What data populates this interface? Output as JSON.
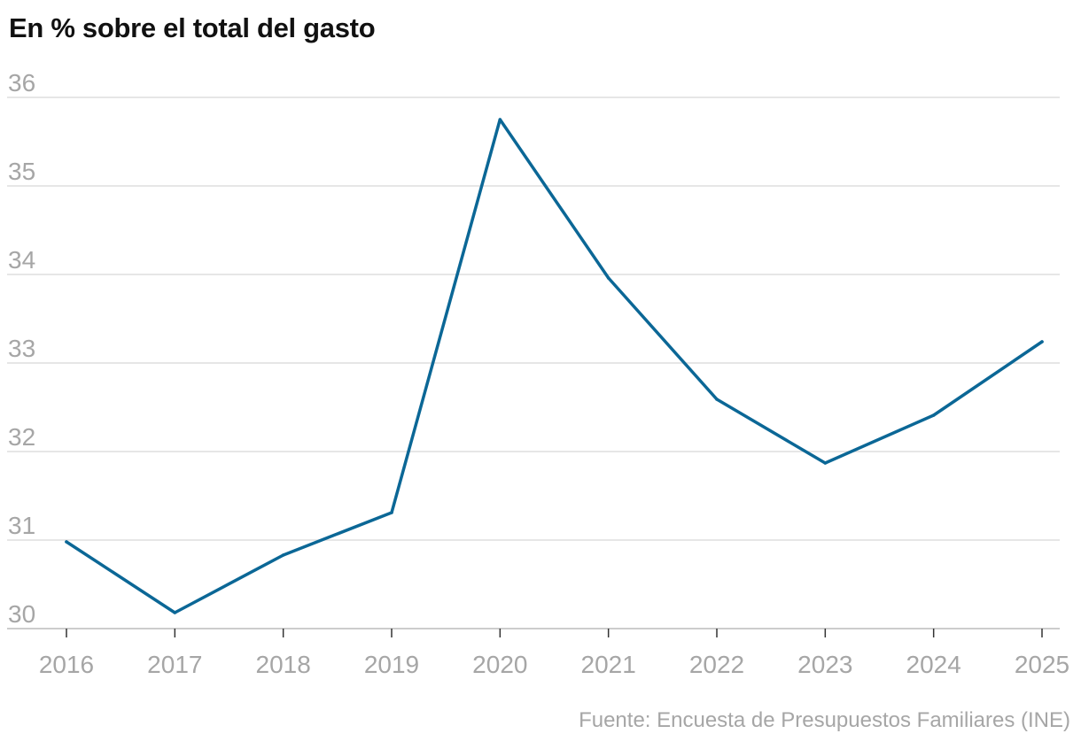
{
  "title": "En % sobre el total del gasto",
  "source": "Fuente: Encuesta de Presupuestos Familiares (INE)",
  "colors": {
    "line": "#0b6796",
    "grid": "#dddddd",
    "axis": "#bbbbbb",
    "tick_text": "#a6a6a6",
    "title": "#111111"
  },
  "chart_data": {
    "type": "line",
    "title": "En % sobre el total del gasto",
    "xlabel": "",
    "ylabel": "",
    "x": [
      "2016",
      "2017",
      "2018",
      "2019",
      "2020",
      "2021",
      "2022",
      "2023",
      "2024",
      "2025"
    ],
    "series": [
      {
        "values": [
          30.98,
          30.18,
          30.83,
          31.31,
          35.75,
          33.96,
          32.59,
          31.87,
          32.41,
          33.24
        ]
      }
    ],
    "ylim": [
      30,
      36
    ],
    "yticks": [
      "30",
      "31",
      "32",
      "33",
      "34",
      "35",
      "36"
    ],
    "grid": "horizontal",
    "legend": "none"
  }
}
